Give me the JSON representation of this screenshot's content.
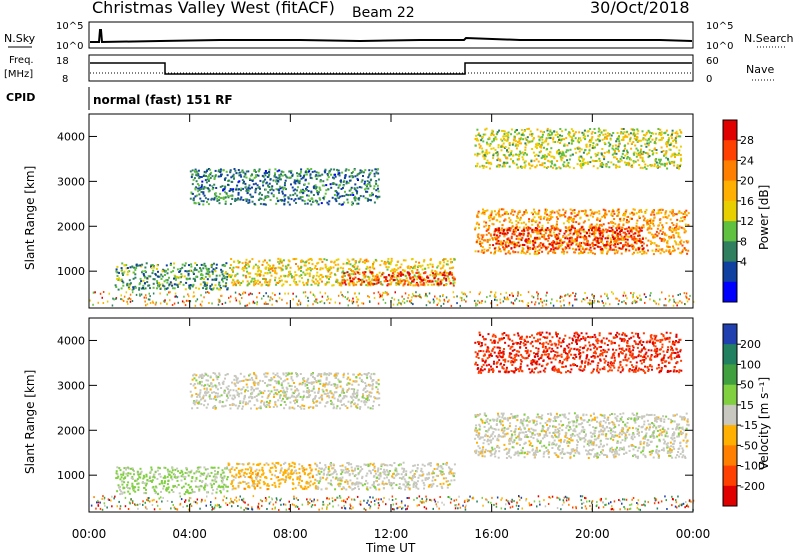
{
  "header": {
    "station": "Christmas Valley West (fitACF)",
    "beam": "Beam 22",
    "date": "30/Oct/2018"
  },
  "top_panel": {
    "left_label": "N.Sky",
    "left_ticks": [
      "10^5",
      "10^0"
    ],
    "right_label": "N.Search",
    "right_ticks": [
      "10^5",
      "10^0"
    ],
    "freq_label_1": "Freq.",
    "freq_label_2": "[MHz]",
    "freq_ticks": [
      "18",
      "8"
    ],
    "nave_label": "Nave",
    "nave_ticks": [
      "60",
      "0"
    ],
    "cpid_label": "CPID",
    "cpid_text": "normal (fast) 151 RF"
  },
  "axes": {
    "ylabel": "Slant Range [km]",
    "xlabel": "Time UT",
    "x_ticks": [
      "00:00",
      "04:00",
      "08:00",
      "12:00",
      "16:00",
      "20:00",
      "00:00"
    ],
    "y_ticks": [
      "1000",
      "2000",
      "3000",
      "4000"
    ]
  },
  "colorbars": {
    "power": {
      "label": "Power [dB]",
      "ticks": [
        "28",
        "24",
        "20",
        "16",
        "12",
        "8",
        "4"
      ],
      "colors": [
        "#e00000",
        "#ff4000",
        "#ff8000",
        "#ffb000",
        "#e8d000",
        "#60c040",
        "#308060",
        "#1040a0",
        "#0000ff"
      ]
    },
    "velocity": {
      "label": "Velocity [m s⁻¹]",
      "ticks": [
        "200",
        "100",
        "50",
        "15",
        "-15",
        "-50",
        "-100",
        "-200"
      ],
      "colors": [
        "#2040b0",
        "#208060",
        "#40a040",
        "#80d040",
        "#c8c8c0",
        "#ffb000",
        "#ff8000",
        "#ff4000",
        "#e00000"
      ]
    }
  },
  "chart_data": [
    {
      "type": "heatmap",
      "title": "Power [dB]",
      "xlabel": "Time UT",
      "ylabel": "Slant Range [km]",
      "xlim": [
        0,
        24
      ],
      "ylim": [
        180,
        4500
      ],
      "clim": [
        0,
        30
      ],
      "regions": [
        {
          "t0": 1.0,
          "t1": 5.5,
          "r0": 600,
          "r1": 1200,
          "value": 10
        },
        {
          "t0": 5.5,
          "t1": 14.5,
          "r0": 700,
          "r1": 1300,
          "value": 16
        },
        {
          "t0": 10.0,
          "t1": 14.5,
          "r0": 700,
          "r1": 1000,
          "value": 26
        },
        {
          "t0": 15.3,
          "t1": 23.8,
          "r0": 1400,
          "r1": 2400,
          "value": 20
        },
        {
          "t0": 16.0,
          "t1": 22.0,
          "r0": 1500,
          "r1": 2000,
          "value": 27
        },
        {
          "t0": 4.0,
          "t1": 11.5,
          "r0": 2500,
          "r1": 3300,
          "value": 8
        },
        {
          "t0": 15.3,
          "t1": 23.5,
          "r0": 3300,
          "r1": 4200,
          "value": 14
        }
      ]
    },
    {
      "type": "heatmap",
      "title": "Velocity [m s-1]",
      "xlabel": "Time UT",
      "ylabel": "Slant Range [km]",
      "xlim": [
        0,
        24
      ],
      "ylim": [
        180,
        4500
      ],
      "clim": [
        -200,
        200
      ],
      "regions": [
        {
          "t0": 1.0,
          "t1": 5.5,
          "r0": 600,
          "r1": 1200,
          "value": 30
        },
        {
          "t0": 5.5,
          "t1": 9.0,
          "r0": 700,
          "r1": 1300,
          "value": -40
        },
        {
          "t0": 9.0,
          "t1": 14.5,
          "r0": 700,
          "r1": 1300,
          "value": 0
        },
        {
          "t0": 15.3,
          "t1": 23.8,
          "r0": 1400,
          "r1": 2400,
          "value": 0
        },
        {
          "t0": 15.3,
          "t1": 23.5,
          "r0": 3300,
          "r1": 4200,
          "value": -150
        },
        {
          "t0": 4.0,
          "t1": 11.5,
          "r0": 2500,
          "r1": 3300,
          "value": 0
        }
      ]
    }
  ]
}
